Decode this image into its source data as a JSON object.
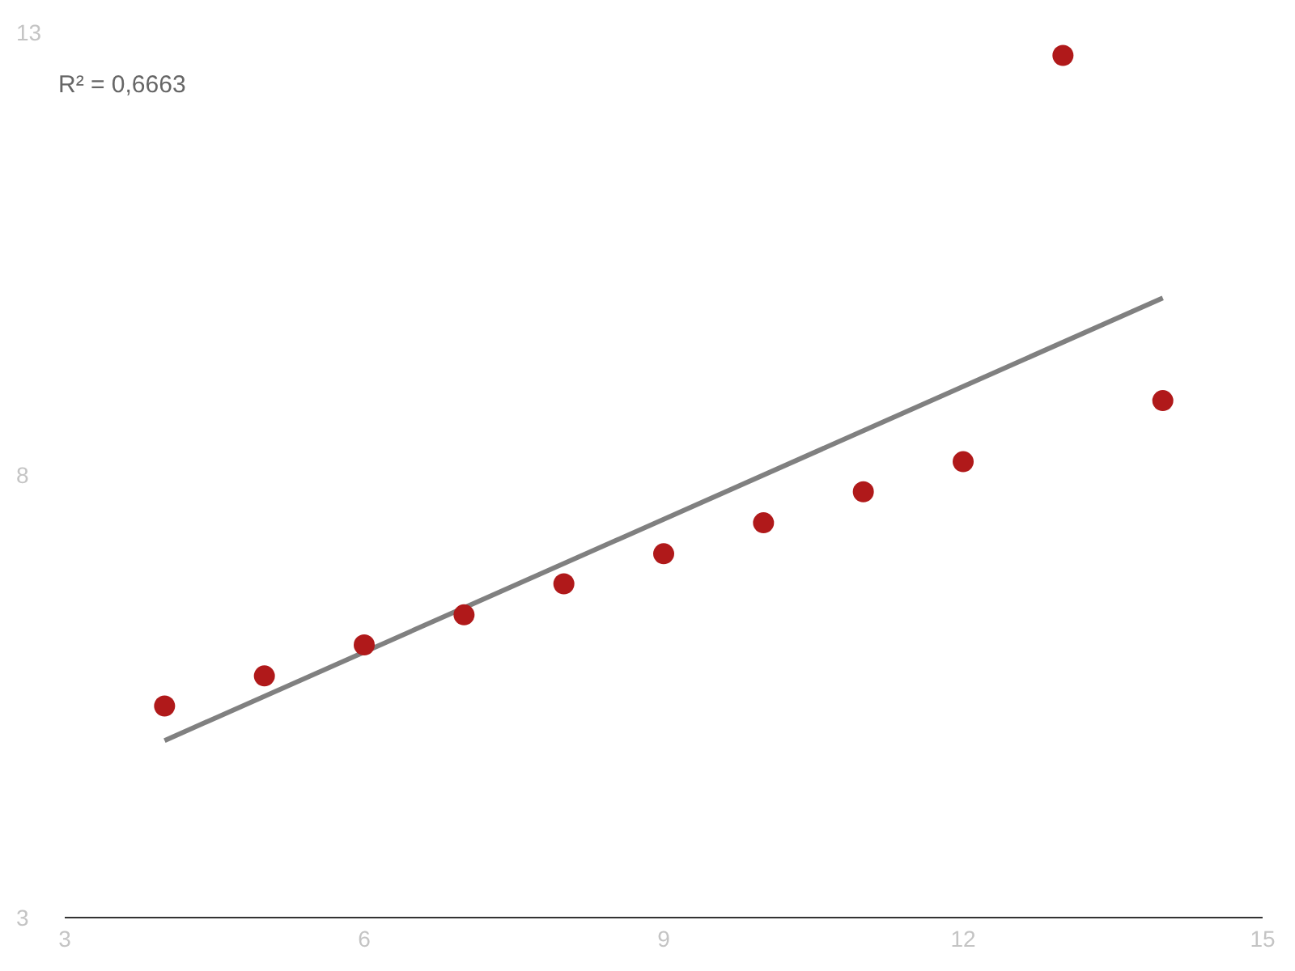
{
  "chart_data": {
    "type": "scatter",
    "x": [
      4,
      5,
      6,
      7,
      8,
      9,
      10,
      11,
      12,
      13,
      14
    ],
    "series": [
      {
        "color": "#b0191a",
        "values": [
          5.39,
          5.73,
          6.08,
          6.42,
          6.77,
          7.11,
          7.46,
          7.81,
          8.15,
          12.74,
          8.84
        ]
      },
      {
        "type": "line",
        "marker": "none",
        "color": "#808080",
        "x": [
          4,
          14
        ],
        "values": [
          5,
          10
        ]
      }
    ],
    "xlim": [
      3,
      15
    ],
    "xticks": [
      3,
      6,
      9,
      12,
      15
    ],
    "ylim": [
      3,
      13
    ],
    "yticks": [
      3,
      8,
      13
    ],
    "annotations": [
      "R² = 0,6663"
    ],
    "grid": false,
    "legend": false,
    "marker": "circle"
  }
}
